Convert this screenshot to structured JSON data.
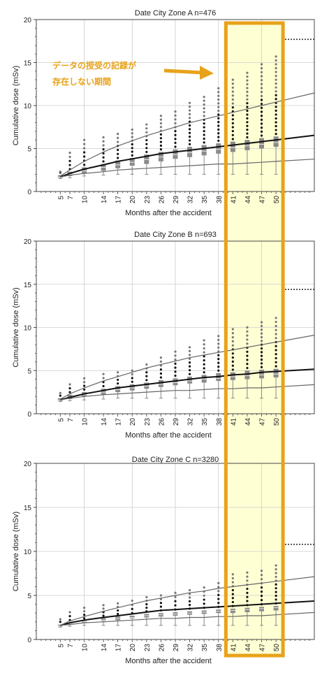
{
  "colors": {
    "highlight_border": "#e8a21a",
    "highlight_fill": "#ffffd4",
    "annotation_text": "#e8a21a",
    "median_line": "#111111",
    "upper_curve": "#666666",
    "lower_curve": "#666666",
    "box": "#8a8a8a",
    "outlier_dark": "#111111",
    "outlier_light": "#777777",
    "grid": "#cccccc",
    "reference_dotted": "#333333"
  },
  "annotation": {
    "line1": "データの授受の記録が",
    "line2": "存在しない期間",
    "arrow": "right-arrow",
    "highlight_range_months": [
      41,
      50
    ]
  },
  "chart_data": [
    {
      "type": "box",
      "title": "Date City Zone A n=476",
      "xlabel": "Months after the accident",
      "ylabel": "Cumulative dose (mSv)",
      "ylim": [
        0,
        20
      ],
      "yticks": [
        0,
        5,
        10,
        15,
        20
      ],
      "x_ticks": [
        5,
        7,
        10,
        14,
        17,
        20,
        23,
        26,
        29,
        32,
        35,
        38,
        41,
        44,
        47,
        50
      ],
      "grid": true,
      "reference_dotted_y": 17.7,
      "series": [
        {
          "kind": "boxes",
          "q1": [
            1.6,
            1.8,
            2.1,
            2.4,
            2.7,
            3.0,
            3.2,
            3.5,
            3.8,
            4.0,
            4.2,
            4.4,
            4.6,
            4.8,
            5.0,
            5.2
          ],
          "median": [
            1.7,
            2.0,
            2.4,
            2.8,
            3.1,
            3.4,
            3.7,
            4.0,
            4.3,
            4.5,
            4.7,
            4.9,
            5.1,
            5.3,
            5.5,
            5.7
          ],
          "q3": [
            1.9,
            2.3,
            2.8,
            3.2,
            3.6,
            3.9,
            4.3,
            4.6,
            4.9,
            5.2,
            5.4,
            5.6,
            5.8,
            6.0,
            6.2,
            6.4
          ],
          "whisker_low": [
            1.5,
            1.6,
            1.8,
            1.9,
            2.0,
            2.0,
            2.0,
            2.0,
            2.0,
            2.0,
            2.0,
            2.0,
            2.0,
            2.0,
            2.0,
            2.0
          ],
          "outlier_max": [
            2.3,
            4.5,
            6.0,
            6.3,
            6.7,
            7.2,
            7.8,
            8.8,
            9.3,
            10.3,
            11.0,
            12.0,
            13.0,
            13.8,
            14.8,
            15.7
          ]
        },
        {
          "kind": "curve",
          "role": "median_fit",
          "y": [
            1.7,
            2.1,
            2.6,
            3.1,
            3.5,
            3.8,
            4.1,
            4.4,
            4.6,
            4.8,
            5.0,
            5.2,
            5.4,
            5.6,
            5.8,
            6.0
          ]
        },
        {
          "kind": "curve",
          "role": "upper_fit",
          "y": [
            1.8,
            2.5,
            3.5,
            4.6,
            5.3,
            5.9,
            6.5,
            7.0,
            7.5,
            8.0,
            8.4,
            8.8,
            9.2,
            9.6,
            10.0,
            10.4
          ]
        },
        {
          "kind": "curve",
          "role": "lower_fit",
          "y": [
            1.7,
            1.9,
            2.1,
            2.3,
            2.5,
            2.6,
            2.7,
            2.8,
            2.9,
            3.0,
            3.1,
            3.2,
            3.2,
            3.3,
            3.4,
            3.5
          ]
        }
      ]
    },
    {
      "type": "box",
      "title": "Date City Zone B n=693",
      "xlabel": "Months after the accident",
      "ylabel": "Cumulative dose (mSv)",
      "ylim": [
        0,
        20
      ],
      "yticks": [
        0,
        5,
        10,
        15,
        20
      ],
      "x_ticks": [
        5,
        7,
        10,
        14,
        17,
        20,
        23,
        26,
        29,
        32,
        35,
        38,
        41,
        44,
        47,
        50
      ],
      "grid": true,
      "reference_dotted_y": 14.4,
      "series": [
        {
          "kind": "boxes",
          "q1": [
            1.5,
            1.7,
            2.0,
            2.2,
            2.5,
            2.7,
            2.9,
            3.1,
            3.3,
            3.5,
            3.6,
            3.8,
            3.9,
            4.0,
            4.1,
            4.2
          ],
          "median": [
            1.6,
            1.9,
            2.2,
            2.5,
            2.8,
            3.0,
            3.2,
            3.4,
            3.6,
            3.8,
            4.0,
            4.1,
            4.3,
            4.4,
            4.5,
            4.6
          ],
          "q3": [
            1.8,
            2.2,
            2.5,
            2.9,
            3.2,
            3.4,
            3.6,
            3.9,
            4.1,
            4.3,
            4.5,
            4.7,
            4.8,
            5.0,
            5.1,
            5.2
          ],
          "whisker_low": [
            1.4,
            1.5,
            1.6,
            1.7,
            1.8,
            1.8,
            1.8,
            1.8,
            1.8,
            1.8,
            1.8,
            1.8,
            1.8,
            1.8,
            1.8,
            1.8
          ],
          "outlier_max": [
            2.4,
            3.4,
            4.1,
            4.6,
            4.8,
            5.0,
            5.7,
            6.5,
            7.2,
            7.7,
            8.5,
            9.0,
            9.8,
            10.0,
            10.6,
            11.1
          ]
        },
        {
          "kind": "curve",
          "role": "median_fit",
          "y": [
            1.6,
            1.9,
            2.3,
            2.7,
            3.0,
            3.2,
            3.4,
            3.6,
            3.8,
            4.0,
            4.2,
            4.3,
            4.5,
            4.6,
            4.8,
            4.9
          ]
        },
        {
          "kind": "curve",
          "role": "upper_fit",
          "y": [
            1.7,
            2.3,
            3.0,
            3.8,
            4.3,
            4.8,
            5.3,
            5.7,
            6.1,
            6.5,
            6.8,
            7.1,
            7.4,
            7.7,
            8.0,
            8.3
          ]
        },
        {
          "kind": "curve",
          "role": "lower_fit",
          "y": [
            1.6,
            1.8,
            2.0,
            2.2,
            2.3,
            2.4,
            2.5,
            2.6,
            2.7,
            2.7,
            2.8,
            2.9,
            2.9,
            3.0,
            3.0,
            3.1
          ]
        }
      ]
    },
    {
      "type": "box",
      "title": "Date City Zone C n=3280",
      "xlabel": "Months after the accident",
      "ylabel": "Cumulative dose (mSv)",
      "ylim": [
        0,
        20
      ],
      "yticks": [
        0,
        5,
        10,
        15,
        20
      ],
      "x_ticks": [
        5,
        7,
        10,
        14,
        17,
        20,
        23,
        26,
        29,
        32,
        35,
        38,
        41,
        44,
        47,
        50
      ],
      "grid": true,
      "reference_dotted_y": 10.8,
      "series": [
        {
          "kind": "boxes",
          "q1": [
            1.5,
            1.7,
            1.9,
            2.1,
            2.2,
            2.4,
            2.5,
            2.6,
            2.7,
            2.8,
            2.9,
            3.0,
            3.0,
            3.1,
            3.2,
            3.3
          ],
          "median": [
            1.6,
            1.8,
            2.0,
            2.2,
            2.4,
            2.5,
            2.7,
            2.8,
            2.9,
            3.0,
            3.1,
            3.2,
            3.3,
            3.4,
            3.5,
            3.6
          ],
          "q3": [
            1.7,
            1.9,
            2.1,
            2.4,
            2.6,
            2.7,
            2.9,
            3.0,
            3.1,
            3.2,
            3.3,
            3.4,
            3.5,
            3.6,
            3.7,
            3.8
          ],
          "whisker_low": [
            1.4,
            1.5,
            1.6,
            1.6,
            1.6,
            1.6,
            1.6,
            1.6,
            1.6,
            1.6,
            1.6,
            1.6,
            1.6,
            1.6,
            1.6,
            1.6
          ],
          "outlier_max": [
            2.3,
            3.1,
            3.6,
            3.9,
            4.1,
            4.4,
            4.8,
            5.0,
            5.3,
            5.6,
            5.9,
            6.4,
            7.4,
            7.6,
            7.8,
            8.4
          ]
        },
        {
          "kind": "curve",
          "role": "median_fit",
          "y": [
            1.6,
            1.9,
            2.2,
            2.5,
            2.7,
            2.9,
            3.1,
            3.3,
            3.4,
            3.5,
            3.6,
            3.7,
            3.8,
            3.9,
            4.0,
            4.1
          ]
        },
        {
          "kind": "curve",
          "role": "upper_fit",
          "y": [
            1.6,
            2.1,
            2.6,
            3.2,
            3.6,
            4.0,
            4.4,
            4.7,
            5.0,
            5.3,
            5.5,
            5.8,
            6.0,
            6.2,
            6.4,
            6.6
          ]
        },
        {
          "kind": "curve",
          "role": "lower_fit",
          "y": [
            1.6,
            1.7,
            1.9,
            2.0,
            2.1,
            2.2,
            2.3,
            2.4,
            2.4,
            2.5,
            2.5,
            2.6,
            2.6,
            2.7,
            2.7,
            2.8
          ]
        }
      ]
    }
  ]
}
